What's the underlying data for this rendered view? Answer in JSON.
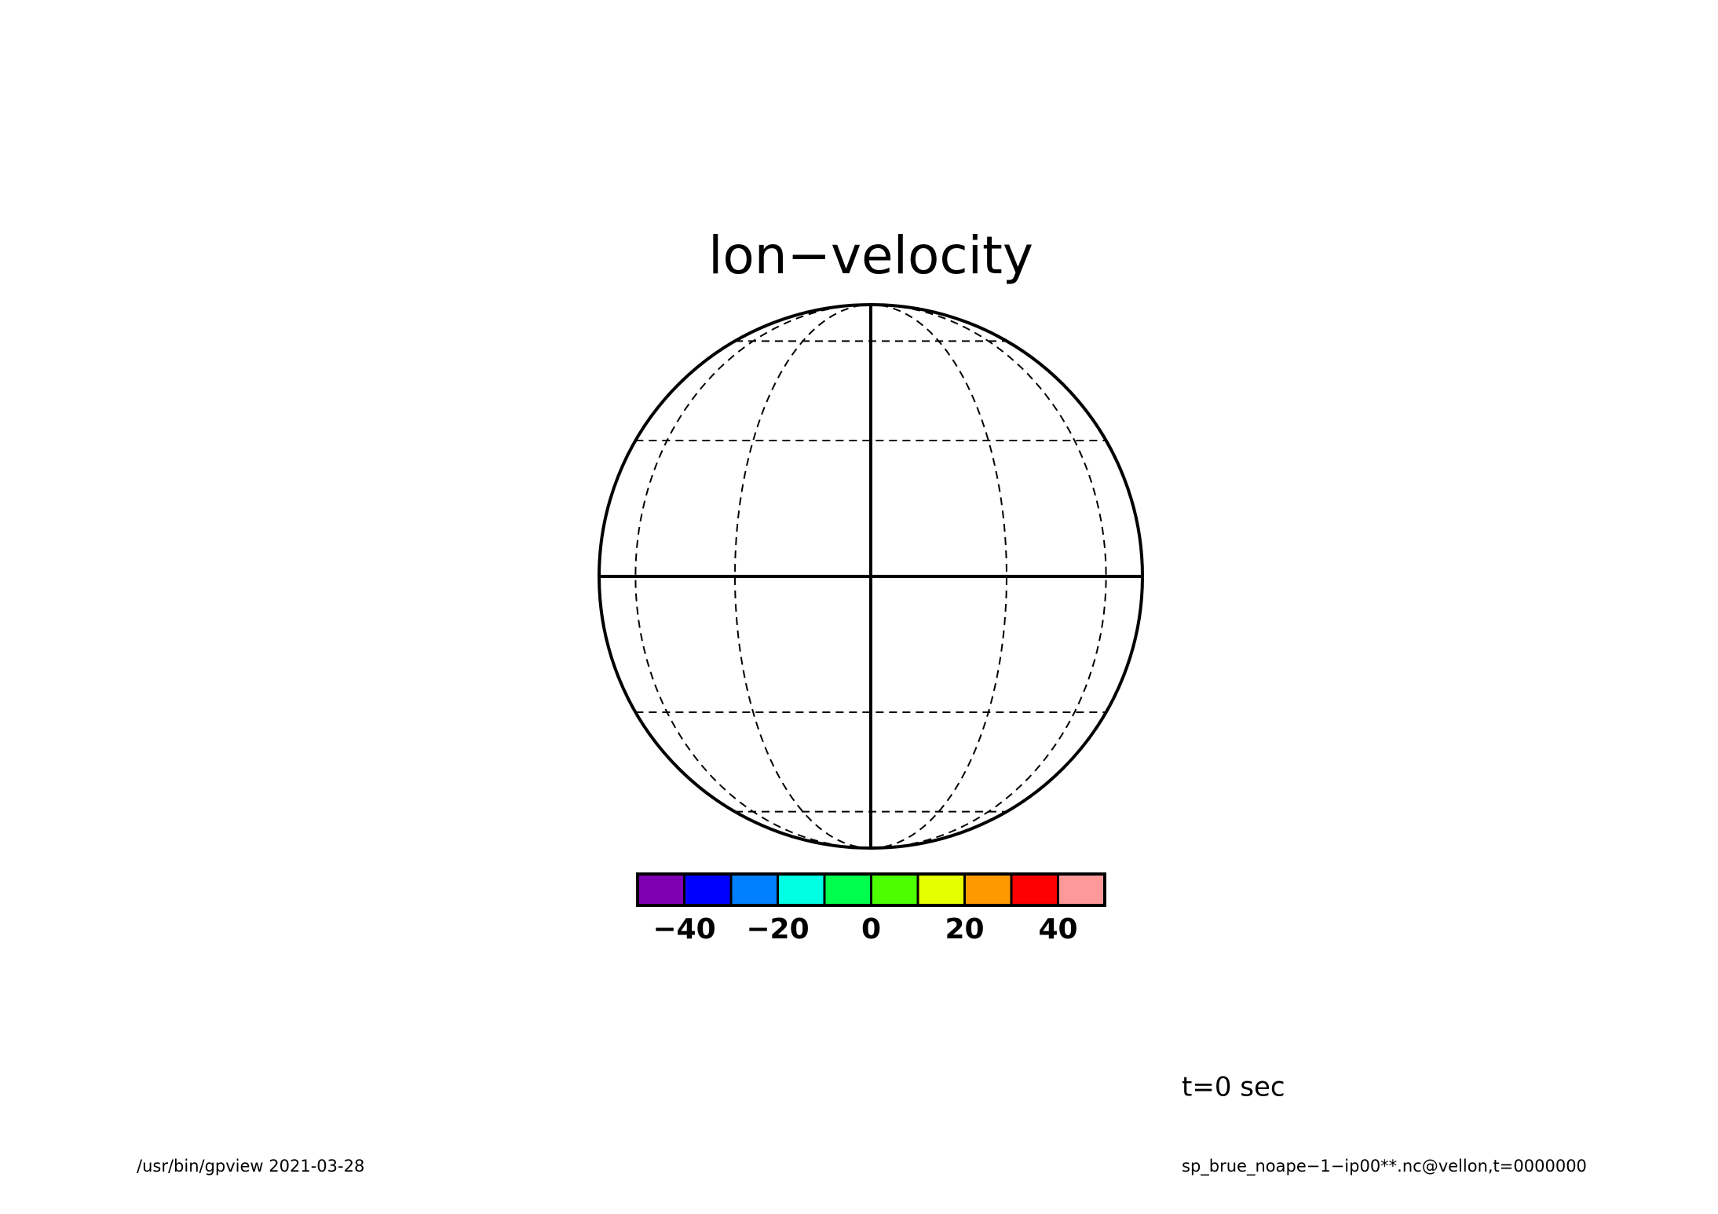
{
  "chart_data": {
    "type": "orthographic",
    "title": "lon−velocity",
    "time_label": "t=0 sec",
    "footer_left": "/usr/bin/gpview  2021-03-28",
    "footer_right": "sp_brue_noape−1−ip00**.nc@vellon,t=0000000",
    "meridians": [
      -60,
      -30,
      0,
      30,
      60
    ],
    "parallels": [
      -60,
      -30,
      0,
      30,
      60
    ],
    "colorbar": {
      "bins": [
        -50,
        -40,
        -30,
        -20,
        -10,
        0,
        10,
        20,
        30,
        40,
        50
      ],
      "colors": [
        "#7f00b2",
        "#0000ff",
        "#0080ff",
        "#00ffe5",
        "#00ff4c",
        "#4cff00",
        "#e5ff00",
        "#ff9900",
        "#ff0000",
        "#ff9999"
      ],
      "xlim": [
        -50,
        50
      ],
      "xticks": [
        {
          "value": -40,
          "label": "−40"
        },
        {
          "value": -20,
          "label": "−20"
        },
        0,
        20,
        40
      ]
    }
  }
}
